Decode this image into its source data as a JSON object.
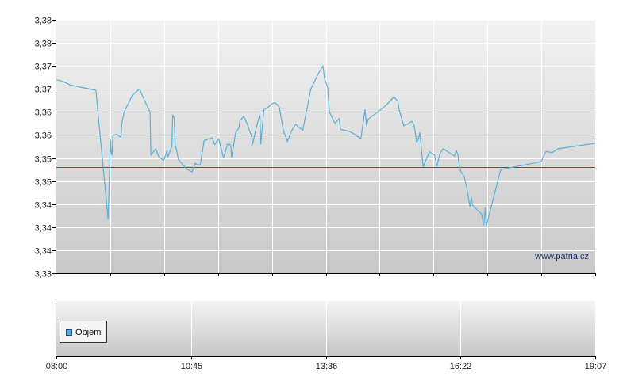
{
  "chart_data": {
    "type": "line",
    "x_ticks": [
      "08:00",
      "10:45",
      "13:36",
      "16:22",
      "19:07"
    ],
    "y_ticks": [
      "3,33",
      "3,34",
      "3,34",
      "3,34",
      "3,35",
      "3,35",
      "3,36",
      "3,36",
      "3,37",
      "3,37",
      "3,38",
      "3,38"
    ],
    "ylim": [
      3.33,
      3.385
    ],
    "reference_line": 3.3531,
    "watermark": "www.patria.cz",
    "legend": [
      {
        "label": "Objem",
        "color": "#5aa9d6"
      }
    ],
    "series": [
      {
        "color": "#5ab0d8",
        "x": [
          "08:00",
          "08:07",
          "08:18",
          "08:49",
          "08:53",
          "08:58",
          "09:04",
          "09:07",
          "09:08",
          "09:09",
          "09:10",
          "09:15",
          "09:20",
          "09:21",
          "09:24",
          "09:34",
          "09:43",
          "09:49",
          "09:56",
          "09:57",
          "10:03",
          "10:07",
          "10:13",
          "10:17",
          "10:18",
          "10:23",
          "10:24",
          "10:26",
          "10:27",
          "10:29",
          "10:31",
          "10:41",
          "10:48",
          "10:52",
          "10:54",
          "10:58",
          "11:03",
          "11:06",
          "11:13",
          "11:16",
          "11:21",
          "11:27",
          "11:32",
          "11:35",
          "11:36",
          "11:37",
          "11:42",
          "11:46",
          "11:47",
          "11:52",
          "11:57",
          "12:02",
          "12:03",
          "12:07",
          "12:12",
          "12:13",
          "12:17",
          "12:22",
          "12:27",
          "12:31",
          "12:36",
          "12:41",
          "12:46",
          "12:51",
          "12:56",
          "13:00",
          "13:05",
          "13:15",
          "13:25",
          "13:30",
          "13:32",
          "13:36",
          "13:38",
          "13:45",
          "13:50",
          "13:52",
          "14:00",
          "14:06",
          "14:17",
          "14:22",
          "14:24",
          "14:26",
          "14:48",
          "14:58",
          "15:03",
          "15:04",
          "15:10",
          "15:15",
          "15:20",
          "15:23",
          "15:26",
          "15:28",
          "15:30",
          "15:34",
          "15:42",
          "15:46",
          "15:48",
          "15:51",
          "15:55",
          "15:59",
          "16:13",
          "16:15",
          "16:17",
          "16:19",
          "16:21",
          "16:25",
          "16:28",
          "16:32",
          "16:33",
          "16:34",
          "16:35",
          "16:39",
          "16:44",
          "16:46",
          "16:49",
          "16:51",
          "16:52",
          "16:56",
          "17:10",
          "18:00",
          "18:06",
          "18:14",
          "18:21",
          "19:07"
        ],
        "y": [
          3.372,
          3.3717,
          3.3708,
          3.3697,
          3.362,
          3.353,
          3.3418,
          3.3589,
          3.356,
          3.3556,
          3.36,
          3.3601,
          3.3595,
          3.3625,
          3.365,
          3.3686,
          3.37,
          3.3675,
          3.365,
          3.3556,
          3.357,
          3.3552,
          3.3545,
          3.3566,
          3.3552,
          3.3575,
          3.3644,
          3.3636,
          3.358,
          3.3565,
          3.3547,
          3.3526,
          3.352,
          3.3539,
          3.3536,
          3.3535,
          3.3588,
          3.359,
          3.3594,
          3.3579,
          3.3592,
          3.355,
          3.358,
          3.3579,
          3.3575,
          3.3552,
          3.3605,
          3.3615,
          3.363,
          3.3641,
          3.362,
          3.3595,
          3.358,
          3.3612,
          3.3645,
          3.358,
          3.3655,
          3.366,
          3.3668,
          3.367,
          3.366,
          3.361,
          3.3586,
          3.3608,
          3.3623,
          3.3617,
          3.361,
          3.37,
          3.3735,
          3.375,
          3.3722,
          3.3703,
          3.365,
          3.3625,
          3.3636,
          3.3612,
          3.3609,
          3.3605,
          3.3592,
          3.3655,
          3.362,
          3.3634,
          3.3664,
          3.3683,
          3.3672,
          3.3657,
          3.362,
          3.3624,
          3.363,
          3.362,
          3.3585,
          3.359,
          3.3605,
          3.3531,
          3.3564,
          3.3558,
          3.3557,
          3.3532,
          3.356,
          3.357,
          3.3554,
          3.3566,
          3.3558,
          3.3531,
          3.352,
          3.3509,
          3.3486,
          3.3444,
          3.3457,
          3.3465,
          3.3448,
          3.3441,
          3.3432,
          3.343,
          3.3405,
          3.3442,
          3.3401,
          3.3428,
          3.3525,
          3.3542,
          3.3564,
          3.3562,
          3.357,
          3.3582
        ]
      }
    ]
  }
}
